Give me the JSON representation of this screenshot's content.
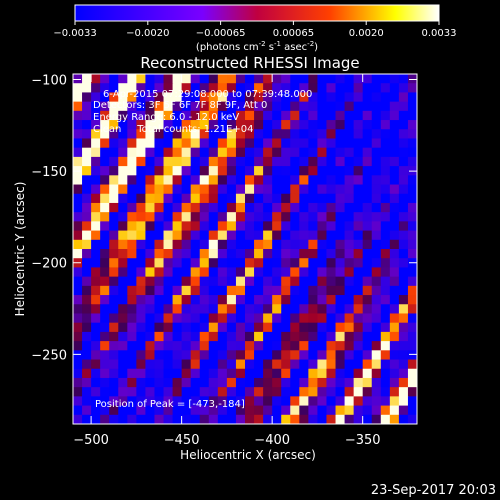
{
  "chart_data": {
    "type": "heatmap",
    "title": "Reconstructed RHESSI Image",
    "xlabel": "Heliocentric X (arcsec)",
    "ylabel": "Heliocentric Y (arcsec)",
    "xlim": [
      -510,
      -320
    ],
    "ylim": [
      -288,
      -97
    ],
    "x_ticks": [
      -500,
      -450,
      -400,
      -350
    ],
    "y_ticks": [
      -100,
      -150,
      -200,
      -250
    ],
    "annotations": [
      "6-Apr-2015 07:29:08.000 to 07:39:48.000",
      "Detectors: 3F 5F 6F 7F 8F 9F, Att 0",
      "Energy Range: 6.0 - 12.0 keV",
      "Clean     Total counts: 1.21E+04"
    ],
    "peak_label": "Position of Peak = [-473,-184]",
    "peak_position": [
      -473,
      -184
    ],
    "colorbar": {
      "min": -0.0033,
      "max": 0.0033,
      "ticks": [
        "-0.0033",
        "-0.0020",
        "-0.00065",
        "0.00065",
        "0.0020",
        "0.0033"
      ],
      "unit_label": "(photons cm-2 s-1 asec-2)",
      "colormap": [
        "#0000ff",
        "#9900ff",
        "#ff0000",
        "#ffff00",
        "#ffffff"
      ]
    },
    "stripe_pattern": {
      "description_values": "diagonal fringe pattern; intensity per grid cell computed by script",
      "grid_cols": 38,
      "grid_rows": 38
    }
  },
  "footer": {
    "date": "23-Sep-2017 20:03"
  }
}
